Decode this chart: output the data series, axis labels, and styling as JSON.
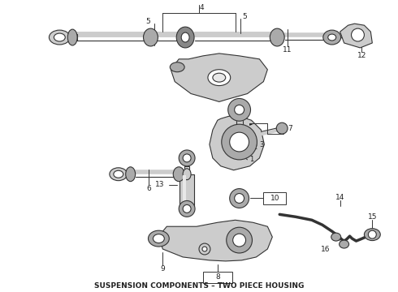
{
  "title": "SUSPENSION COMPONENTS – TWO PIECE HOUSING",
  "title_fontsize": 6.5,
  "background_color": "#ffffff",
  "line_color": "#333333",
  "label_color": "#222222",
  "fig_w": 4.9,
  "fig_h": 3.6,
  "dpi": 100
}
